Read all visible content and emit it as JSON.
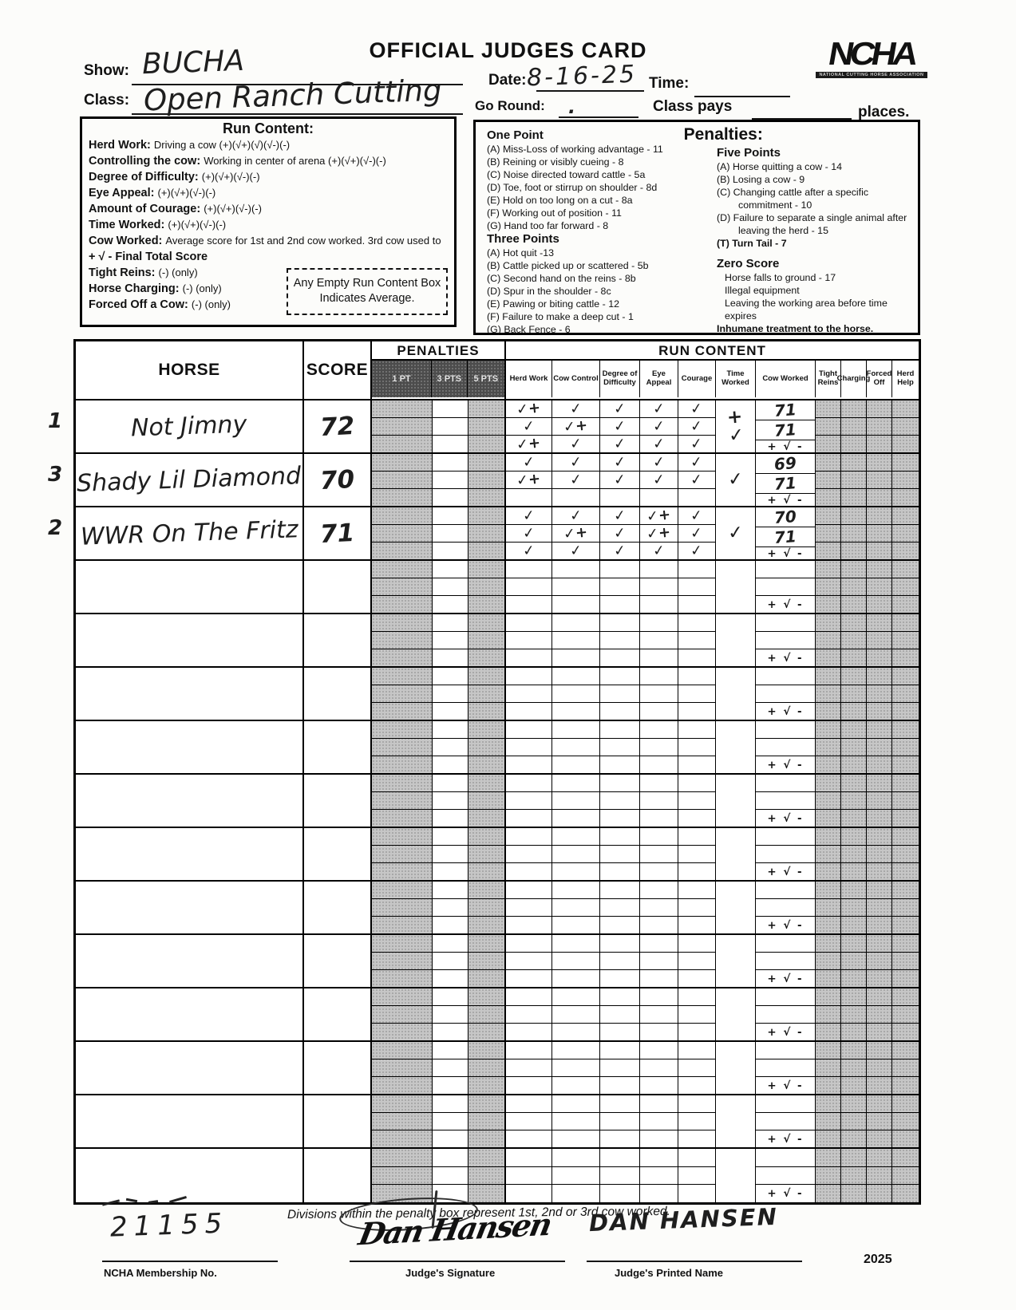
{
  "header": {
    "title": "OFFICIAL JUDGES CARD",
    "show_label": "Show:",
    "show_value": "BUCHA",
    "class_label": "Class:",
    "class_value": "Open Ranch Cutting",
    "date_label": "Date:",
    "date_value": "8-16-25",
    "time_label": "Time:",
    "go_round_label": "Go Round:",
    "go_round_value": ".",
    "class_pays_label": "Class pays",
    "places_label": "places.",
    "logo_text": "NCHA",
    "logo_subtext": "NATIONAL CUTTING HORSE ASSOCIATION"
  },
  "run_content_box": {
    "title": "Run Content:",
    "lines": [
      {
        "label": "Herd Work:",
        "text": "Driving a cow (+)(√+)(√)(√-)(-)"
      },
      {
        "label": "Controlling the cow:",
        "text": "Working in center of arena (+)(√+)(√-)(-)"
      },
      {
        "label": "Degree of Difficulty:",
        "text": "(+)(√+)(√-)(-)"
      },
      {
        "label": "Eye Appeal:",
        "text": "(+)(√+)(√-)(-)"
      },
      {
        "label": "Amount of Courage:",
        "text": "(+)(√+)(√-)(-)"
      },
      {
        "label": "Time Worked:",
        "text": "(+)(√+)(√-)(-)"
      },
      {
        "label": "Cow Worked:",
        "text": "Average score for 1st and 2nd cow worked.  3rd cow used to"
      },
      {
        "label": "+ √ - Final Total Score",
        "text": ""
      },
      {
        "label": "Tight Reins:",
        "text": "(-) (only)"
      },
      {
        "label": "Horse Charging:",
        "text": "(-) (only)"
      },
      {
        "label": "Forced Off a Cow:",
        "text": "(-) (only)"
      }
    ],
    "note": "Any Empty Run Content Box Indicates Average."
  },
  "penalties_box": {
    "title": "Penalties:",
    "one_point": {
      "heading": "One Point",
      "items": [
        "(A)  Miss-Loss of working advantage - 11",
        "(B)  Reining or visibly cueing - 8",
        "(C)  Noise directed toward cattle - 5a",
        "(D)  Toe, foot or stirrup on shoulder - 8d",
        "(E)  Hold on too long on a cut - 8a",
        "(F)  Working out of position - 11",
        "(G)  Hand too far forward - 8"
      ]
    },
    "three_points": {
      "heading": "Three Points",
      "items": [
        "(A)  Hot quit -13",
        "(B)  Cattle picked up or scattered - 5b",
        "(C)  Second hand on the reins - 8b",
        "(D)  Spur in the shoulder - 8c",
        "(E)  Pawing or biting cattle - 12",
        "(F)  Failure to make a deep cut - 1",
        "(G)  Back Fence - 6"
      ]
    },
    "five_points": {
      "heading": "Five Points",
      "items": [
        "(A)  Horse quitting a cow - 14",
        "(B)  Losing a cow - 9",
        "(C)  Changing cattle after a specific commitment - 10",
        "(D)  Failure to separate a single animal after leaving the herd - 15"
      ]
    },
    "turn_tail": "(T)  Turn Tail - 7",
    "zero_score": {
      "heading": "Zero Score",
      "items": [
        "Horse falls to ground - 17",
        "Illegal equipment",
        "Leaving the working area before time expires"
      ],
      "bold_item": "Inhumane treatment to the horse."
    }
  },
  "table": {
    "horse_header": "HORSE",
    "score_header": "SCORE",
    "penalties_header": "PENALTIES",
    "penalty_cols": [
      "1 PT",
      "3 PTS",
      "5 PTS"
    ],
    "run_content_header": "RUN CONTENT",
    "run_cols": [
      "Herd Work",
      "Cow Control",
      "Degree of Difficulty",
      "Eye Appeal",
      "Courage",
      "Time Worked",
      "Cow Worked",
      "Tight Reins",
      "Charging",
      "Forced Off",
      "Herd Help"
    ],
    "plus_check_minus": "+ √ -",
    "rows": [
      {
        "placing": "1",
        "horse": "Not Jimny",
        "score": "72",
        "herd_work": [
          "✓+",
          "✓",
          "✓+"
        ],
        "cow_control": [
          "✓",
          "✓+",
          "✓"
        ],
        "degree_of_difficulty": [
          "✓",
          "✓",
          "✓"
        ],
        "eye_appeal": [
          "✓",
          "✓",
          "✓"
        ],
        "courage": [
          "✓",
          "✓",
          "✓"
        ],
        "time_worked": "+\n✓",
        "cow_worked": [
          "71",
          "71"
        ]
      },
      {
        "placing": "3",
        "horse": "Shady Lil Diamond",
        "score": "70",
        "herd_work": [
          "✓",
          "✓+",
          ""
        ],
        "cow_control": [
          "✓",
          "✓",
          ""
        ],
        "degree_of_difficulty": [
          "✓",
          "✓",
          ""
        ],
        "eye_appeal": [
          "✓",
          "✓",
          ""
        ],
        "courage": [
          "✓",
          "✓",
          ""
        ],
        "time_worked": "✓",
        "cow_worked": [
          "69",
          "71"
        ]
      },
      {
        "placing": "2",
        "horse": "WWR On The Fritz",
        "score": "71",
        "herd_work": [
          "✓",
          "✓",
          "✓"
        ],
        "cow_control": [
          "✓",
          "✓+",
          "✓"
        ],
        "degree_of_difficulty": [
          "✓",
          "✓",
          "✓"
        ],
        "eye_appeal": [
          "✓+",
          "✓+",
          "✓"
        ],
        "courage": [
          "✓",
          "✓",
          "✓"
        ],
        "time_worked": "✓",
        "cow_worked": [
          "70",
          "71"
        ]
      },
      {},
      {},
      {},
      {},
      {},
      {},
      {},
      {},
      {},
      {},
      {},
      {}
    ]
  },
  "footer": {
    "note": "Divisions within the penalty box represent 1st, 2nd or 3rd cow worked.",
    "membership_no": "21155",
    "membership_label": "NCHA Membership No.",
    "signature_value": "Dan Hansen",
    "signature_label": "Judge's Signature",
    "printed_name_value": "DAN HANSEN",
    "printed_name_label": "Judge's Printed Name",
    "year": "2025"
  }
}
